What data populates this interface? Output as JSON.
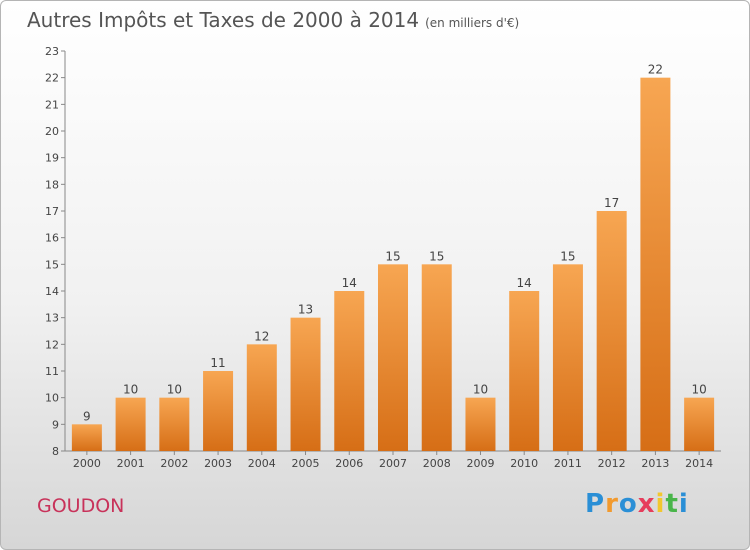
{
  "title": {
    "main": "Autres Impôts et Taxes de 2000 à 2014",
    "unit": "(en milliers d'€)"
  },
  "commune": "GOUDON",
  "logo": {
    "text": "Proxiti",
    "letters": [
      {
        "c": "P",
        "color": "#2a8fd6"
      },
      {
        "c": "r",
        "color": "#f29a2e"
      },
      {
        "c": "o",
        "color": "#2a8fd6"
      },
      {
        "c": "x",
        "color": "#e63d5c"
      },
      {
        "c": "i",
        "color": "#f2c72e"
      },
      {
        "c": "t",
        "color": "#49b54a"
      },
      {
        "c": "i",
        "color": "#2a8fd6"
      }
    ]
  },
  "chart_data": {
    "type": "bar",
    "categories": [
      "2000",
      "2001",
      "2002",
      "2003",
      "2004",
      "2005",
      "2006",
      "2007",
      "2008",
      "2009",
      "2010",
      "2011",
      "2012",
      "2013",
      "2014"
    ],
    "values": [
      9,
      10,
      10,
      11,
      12,
      13,
      14,
      15,
      15,
      10,
      14,
      15,
      17,
      22,
      10
    ],
    "title": "Autres Impôts et Taxes de 2000 à 2014",
    "xlabel": "",
    "ylabel": "",
    "ylim": [
      8,
      23
    ],
    "yticks": [
      8,
      9,
      10,
      11,
      12,
      13,
      14,
      15,
      16,
      17,
      18,
      19,
      20,
      21,
      22,
      23
    ],
    "grid": false,
    "legend": "none",
    "colors": {
      "bar_top": "#f7a652",
      "bar_bottom": "#d66e16",
      "axis": "#888888",
      "text": "#444444"
    }
  }
}
